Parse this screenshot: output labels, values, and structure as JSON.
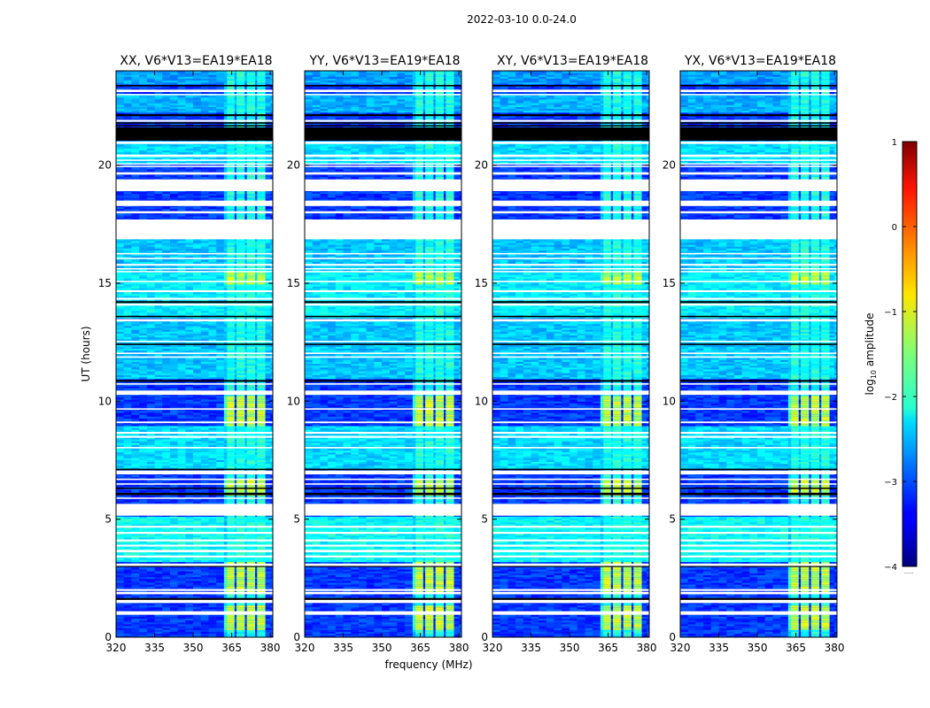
{
  "chart_data": {
    "type": "heatmap",
    "suptitle": "2022-03-10 0.0-24.0",
    "xlabel": "frequency (MHz)",
    "ylabel": "UT (hours)",
    "xlim": [
      320,
      381
    ],
    "ylim": [
      0,
      24
    ],
    "xticks": [
      "320",
      "335",
      "350",
      "365",
      "380"
    ],
    "xtick_values": [
      320,
      335,
      350,
      365,
      380
    ],
    "yticks": [
      "0",
      "5",
      "10",
      "15",
      "20"
    ],
    "ytick_values": [
      0,
      5,
      10,
      15,
      20
    ],
    "colorbar": {
      "label": "log10 amplitude",
      "label_main": "log",
      "label_sub": "10",
      "label_tail": " amplitude",
      "range": [
        -4,
        1
      ],
      "ticks": [
        "1",
        "0",
        "−1",
        "−2",
        "−3",
        "−4"
      ],
      "tick_values": [
        1,
        0,
        -1,
        -2,
        -3,
        -4
      ],
      "colormap": "jet",
      "footnote": "......"
    },
    "panels": [
      {
        "title": "XX, V6*V13=EA19*EA18"
      },
      {
        "title": "YY, V6*V13=EA19*EA18"
      },
      {
        "title": "XY, V6*V13=EA19*EA18"
      },
      {
        "title": "YX, V6*V13=EA19*EA18"
      }
    ],
    "background_level": -3.1,
    "signal_band_mhz": [
      362,
      378
    ],
    "signal_channels_mhz": [
      364.5,
      368.5,
      372.5,
      376.5
    ],
    "flagged_white_hours": [
      [
        0.95,
        1.1
      ],
      [
        1.45,
        1.6
      ],
      [
        1.82,
        1.92
      ],
      [
        1.96,
        2.04
      ],
      [
        3.0,
        3.12
      ],
      [
        3.38,
        3.46
      ],
      [
        3.6,
        3.7
      ],
      [
        3.84,
        3.92
      ],
      [
        4.06,
        4.14
      ],
      [
        4.38,
        4.46
      ],
      [
        4.64,
        4.72
      ],
      [
        5.15,
        5.65
      ],
      [
        5.86,
        5.92
      ],
      [
        6.46,
        6.52
      ],
      [
        6.66,
        6.72
      ],
      [
        6.9,
        7.06
      ],
      [
        8.0,
        8.06
      ],
      [
        8.45,
        8.53
      ],
      [
        8.62,
        8.7
      ],
      [
        9.07,
        9.14
      ],
      [
        9.64,
        9.7
      ],
      [
        10.27,
        10.45
      ],
      [
        10.7,
        10.76
      ],
      [
        11.84,
        11.9
      ],
      [
        12.0,
        12.06
      ],
      [
        12.5,
        12.56
      ],
      [
        13.38,
        13.48
      ],
      [
        14.05,
        14.14
      ],
      [
        14.3,
        14.38
      ],
      [
        14.62,
        14.7
      ],
      [
        15.04,
        15.1
      ],
      [
        15.47,
        15.52
      ],
      [
        15.58,
        15.64
      ],
      [
        15.74,
        15.82
      ],
      [
        16.02,
        16.08
      ],
      [
        16.22,
        16.28
      ],
      [
        16.86,
        17.7
      ],
      [
        17.96,
        18.05
      ],
      [
        18.27,
        18.5
      ],
      [
        18.9,
        19.4
      ],
      [
        19.6,
        19.7
      ],
      [
        19.92,
        19.98
      ],
      [
        20.04,
        20.08
      ],
      [
        20.18,
        20.24
      ],
      [
        20.35,
        20.45
      ],
      [
        20.9,
        21.0
      ],
      [
        21.84,
        21.92
      ],
      [
        22.98,
        23.02
      ],
      [
        23.1,
        23.2
      ]
    ],
    "flagged_black_hours": [
      [
        1.58,
        1.66
      ],
      [
        2.98,
        3.02
      ],
      [
        6.02,
        6.12
      ],
      [
        6.28,
        6.34
      ],
      [
        7.08,
        7.14
      ],
      [
        10.82,
        10.9
      ],
      [
        12.38,
        12.44
      ],
      [
        13.56,
        13.62
      ],
      [
        14.16,
        14.24
      ],
      [
        21.04,
        21.6
      ],
      [
        21.64,
        21.7
      ],
      [
        21.76,
        21.82
      ],
      [
        22.08,
        22.16
      ],
      [
        23.34,
        23.4
      ]
    ],
    "high_signal_hours": [
      [
        0.3,
        1.3
      ],
      [
        1.9,
        3.2
      ],
      [
        5.95,
        6.7
      ],
      [
        8.9,
        10.2
      ],
      [
        14.9,
        15.5
      ]
    ],
    "band_levels_hours": [
      [
        23.4,
        24.0,
        -2.6
      ],
      [
        22.2,
        23.0,
        -2.5
      ],
      [
        20.0,
        21.0,
        -2.3
      ],
      [
        15.5,
        16.9,
        -2.4
      ],
      [
        13.5,
        15.5,
        -2.2
      ],
      [
        10.9,
        13.4,
        -2.4
      ],
      [
        7.1,
        8.9,
        -2.3
      ],
      [
        3.2,
        5.1,
        -2.1
      ]
    ]
  }
}
